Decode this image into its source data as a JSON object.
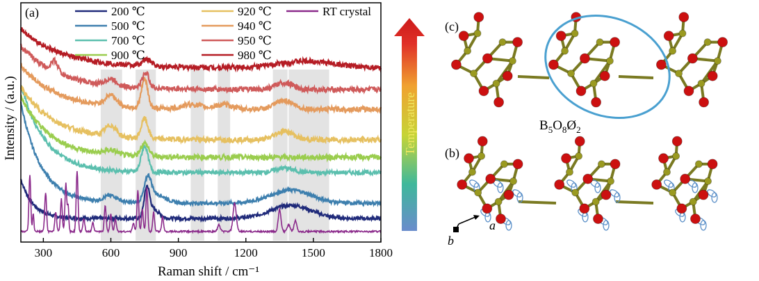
{
  "panel_labels": {
    "a": "(a)",
    "b": "(b)",
    "c": "(c)"
  },
  "temperature_arrow": {
    "label": "Temperature",
    "colors": [
      "#6a8ccc",
      "#3fb89b",
      "#c6d436",
      "#f0a230",
      "#e03028",
      "#cc1a1a"
    ]
  },
  "structure": {
    "formula_parts": [
      "B",
      "5",
      "O",
      "8",
      "Ø",
      "2"
    ],
    "axis_a": "a",
    "axis_b": "b",
    "oxygen_color": "#cc1010",
    "boron_color": "#9a9a20",
    "highlight_color": "#4aa0d0"
  },
  "chart_data": {
    "type": "line",
    "xlabel": "Raman shift / cm⁻¹",
    "ylabel": "Intensity / (a.u.)",
    "xlim": [
      200,
      1800
    ],
    "xticks": [
      300,
      600,
      900,
      1200,
      1500,
      1800
    ],
    "shaded_bands": [
      [
        555,
        650
      ],
      [
        710,
        800
      ],
      [
        955,
        1015
      ],
      [
        1075,
        1130
      ],
      [
        1320,
        1385
      ],
      [
        1390,
        1570
      ]
    ],
    "legend": [
      {
        "name": "200 ℃",
        "color": "#1f2a7a"
      },
      {
        "name": "500 ℃",
        "color": "#3d7fae"
      },
      {
        "name": "700 ℃",
        "color": "#5bbfae"
      },
      {
        "name": "900 ℃",
        "color": "#9acd4e"
      },
      {
        "name": "920 ℃",
        "color": "#e6c060"
      },
      {
        "name": "940 ℃",
        "color": "#e49a5c"
      },
      {
        "name": "950 ℃",
        "color": "#cf5a5a"
      },
      {
        "name": "980 ℃",
        "color": "#b51c24"
      },
      {
        "name": "RT crystal",
        "color": "#8b2a8b"
      }
    ],
    "series": [
      {
        "name": "200 ℃",
        "color": "#1f2a7a",
        "base": 0.07,
        "edge": 0.18,
        "decay": 55,
        "noise": 0.004,
        "peaks": [
          [
            760,
            0.13,
            12
          ],
          [
            790,
            0.04,
            25
          ],
          [
            1400,
            0.06,
            90
          ]
        ]
      },
      {
        "name": "500 ℃",
        "color": "#3d7fae",
        "base": 0.14,
        "edge": 0.46,
        "decay": 90,
        "noise": 0.004,
        "peaks": [
          [
            600,
            0.03,
            30
          ],
          [
            765,
            0.1,
            15
          ],
          [
            800,
            0.04,
            40
          ],
          [
            1400,
            0.06,
            90
          ]
        ]
      },
      {
        "name": "700 ℃",
        "color": "#5bbfae",
        "base": 0.28,
        "edge": 0.4,
        "decay": 110,
        "noise": 0.005,
        "peaks": [
          [
            750,
            0.12,
            15
          ],
          [
            1370,
            0.02,
            40
          ]
        ]
      },
      {
        "name": "900 ℃",
        "color": "#9acd4e",
        "base": 0.35,
        "edge": 0.28,
        "decay": 130,
        "noise": 0.006,
        "peaks": [
          [
            750,
            0.06,
            18
          ],
          [
            600,
            0.02,
            30
          ]
        ]
      },
      {
        "name": "920 ℃",
        "color": "#e6c060",
        "base": 0.43,
        "edge": 0.24,
        "decay": 150,
        "noise": 0.006,
        "peaks": [
          [
            600,
            0.05,
            25
          ],
          [
            750,
            0.09,
            15
          ],
          [
            1370,
            0.04,
            40
          ]
        ]
      },
      {
        "name": "940 ℃",
        "color": "#e49a5c",
        "base": 0.57,
        "edge": 0.2,
        "decay": 160,
        "noise": 0.006,
        "peaks": [
          [
            600,
            0.05,
            25
          ],
          [
            750,
            0.13,
            14
          ],
          [
            960,
            0.02,
            40
          ],
          [
            1100,
            0.02,
            40
          ],
          [
            1370,
            0.04,
            40
          ]
        ]
      },
      {
        "name": "950 ℃",
        "color": "#cf5a5a",
        "base": 0.66,
        "edge": 0.2,
        "decay": 170,
        "noise": 0.006,
        "peaks": [
          [
            350,
            0.05,
            15
          ],
          [
            600,
            0.03,
            25
          ],
          [
            755,
            0.07,
            15
          ],
          [
            1370,
            0.03,
            40
          ]
        ]
      },
      {
        "name": "980 ℃",
        "color": "#b51c24",
        "base": 0.76,
        "edge": 0.18,
        "decay": 180,
        "noise": 0.006,
        "peaks": [
          [
            760,
            0.03,
            20
          ],
          [
            1470,
            0.03,
            120
          ]
        ]
      },
      {
        "name": "RT crystal",
        "color": "#8b2a8b",
        "base": 0.01,
        "edge": 0.0,
        "decay": 100,
        "noise": 0.002,
        "peaks": [
          [
            240,
            0.26,
            4
          ],
          [
            255,
            0.08,
            3
          ],
          [
            310,
            0.18,
            4
          ],
          [
            355,
            0.09,
            4
          ],
          [
            380,
            0.15,
            4
          ],
          [
            400,
            0.22,
            4
          ],
          [
            410,
            0.12,
            3
          ],
          [
            450,
            0.28,
            4
          ],
          [
            480,
            0.06,
            4
          ],
          [
            520,
            0.04,
            4
          ],
          [
            575,
            0.12,
            4
          ],
          [
            600,
            0.08,
            4
          ],
          [
            620,
            0.06,
            4
          ],
          [
            700,
            0.04,
            4
          ],
          [
            720,
            0.19,
            4
          ],
          [
            740,
            0.1,
            4
          ],
          [
            760,
            0.2,
            4
          ],
          [
            790,
            0.09,
            4
          ],
          [
            830,
            0.07,
            4
          ],
          [
            1080,
            0.03,
            6
          ],
          [
            1150,
            0.13,
            7
          ],
          [
            1350,
            0.1,
            6
          ],
          [
            1390,
            0.03,
            6
          ],
          [
            1420,
            0.05,
            6
          ]
        ]
      }
    ]
  }
}
